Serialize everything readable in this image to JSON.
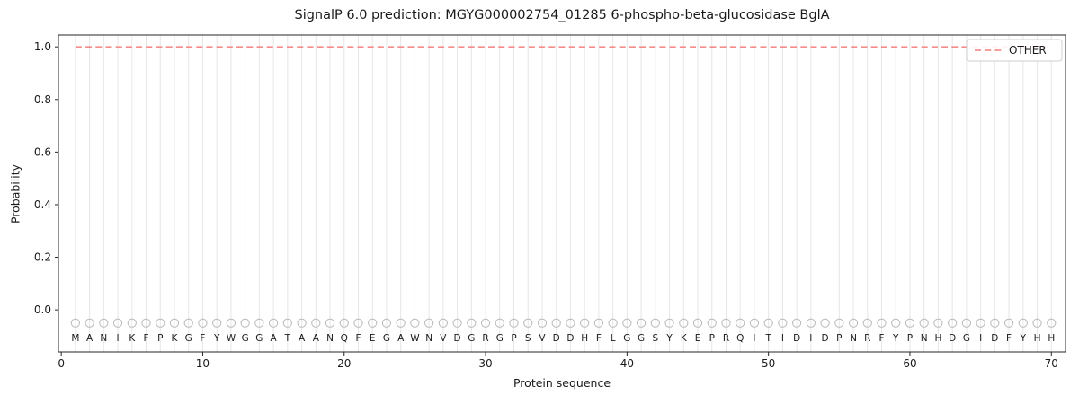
{
  "chart_data": {
    "type": "line",
    "title": "SignalP 6.0 prediction: MGYG000002754_01285 6-phospho-beta-glucosidase BglA",
    "xlabel": "Protein sequence",
    "ylabel": "Probability",
    "xlim": [
      -0.2,
      71.0
    ],
    "ylim": [
      -0.16,
      1.045
    ],
    "xticks": [
      0,
      10,
      20,
      30,
      40,
      50,
      60,
      70
    ],
    "yticks": [
      0.0,
      0.2,
      0.4,
      0.6,
      0.8,
      1.0
    ],
    "grid": "vertical gridline at every residue position, no horizontal gridlines",
    "n_residues": 70,
    "sequence": "MANIKFPKGFYWGGATAANQFEGAWNVDGRGPSVDDHFLGGSYKEPRQITIDIDPNRFYPNHDGIDFYHH",
    "series": [
      {
        "name": "OTHER",
        "style": "dashed",
        "color": "#f47f7f",
        "x": [
          1,
          2,
          3,
          4,
          5,
          6,
          7,
          8,
          9,
          10,
          11,
          12,
          13,
          14,
          15,
          16,
          17,
          18,
          19,
          20,
          21,
          22,
          23,
          24,
          25,
          26,
          27,
          28,
          29,
          30,
          31,
          32,
          33,
          34,
          35,
          36,
          37,
          38,
          39,
          40,
          41,
          42,
          43,
          44,
          45,
          46,
          47,
          48,
          49,
          50,
          51,
          52,
          53,
          54,
          55,
          56,
          57,
          58,
          59,
          60,
          61,
          62,
          63,
          64,
          65,
          66,
          67,
          68,
          69,
          70
        ],
        "values": [
          1.0,
          1.0,
          1.0,
          1.0,
          1.0,
          1.0,
          1.0,
          1.0,
          1.0,
          1.0,
          1.0,
          1.0,
          1.0,
          1.0,
          1.0,
          1.0,
          1.0,
          1.0,
          1.0,
          1.0,
          1.0,
          1.0,
          1.0,
          1.0,
          1.0,
          1.0,
          1.0,
          1.0,
          1.0,
          1.0,
          1.0,
          1.0,
          1.0,
          1.0,
          1.0,
          1.0,
          1.0,
          1.0,
          1.0,
          1.0,
          1.0,
          1.0,
          1.0,
          1.0,
          1.0,
          1.0,
          1.0,
          1.0,
          1.0,
          1.0,
          1.0,
          1.0,
          1.0,
          1.0,
          1.0,
          1.0,
          1.0,
          1.0,
          1.0,
          1.0,
          1.0,
          1.0,
          1.0,
          1.0,
          1.0,
          1.0,
          1.0,
          1.0,
          1.0,
          1.0
        ]
      }
    ],
    "residue_markers": {
      "shape": "open-circle",
      "y": -0.05,
      "color": "#bdbdbd"
    },
    "legend": {
      "position": "upper right",
      "entries": [
        {
          "label": "OTHER",
          "style": "dashed",
          "color": "#f47f7f"
        }
      ]
    },
    "colors": {
      "gridline": "#e6e6e6",
      "spine": "#262626",
      "text": "#1a1a1a",
      "legend_border": "#cfcfcf",
      "legend_bg": "#ffffff"
    }
  }
}
